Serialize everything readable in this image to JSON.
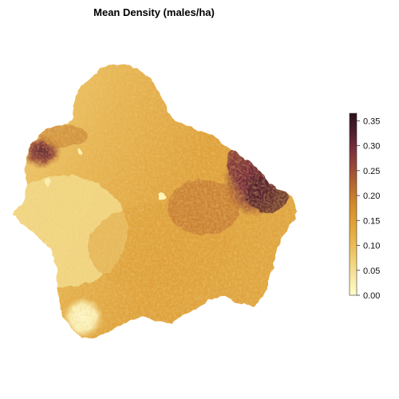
{
  "title": "Mean Density (males/ha)",
  "legend": {
    "ticks": [
      "0.35",
      "0.30",
      "0.25",
      "0.20",
      "0.15",
      "0.10",
      "0.05",
      "0.00"
    ],
    "tick_values": [
      0.35,
      0.3,
      0.25,
      0.2,
      0.15,
      0.1,
      0.05,
      0.0
    ],
    "range": [
      0.0,
      0.365
    ],
    "palette": [
      "#FFFFCC",
      "#F8E7A2",
      "#F0CF74",
      "#E9B54E",
      "#E0A033",
      "#D18A2A",
      "#B96A2E",
      "#9B4A37",
      "#7B2F3B",
      "#4E1E2C",
      "#2B1119"
    ]
  },
  "colors": {
    "low": "#FFFFCC",
    "mid": "#E3A443",
    "high": "#4E1E2C",
    "background": "#FFFFFF"
  }
}
